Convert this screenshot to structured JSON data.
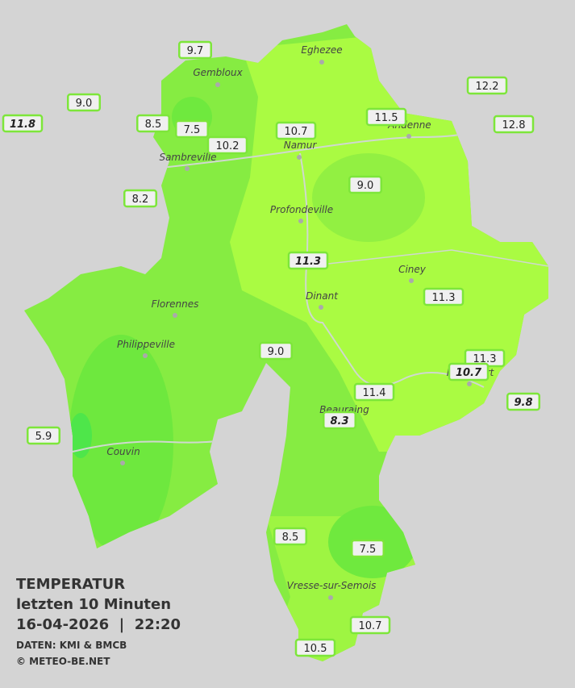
{
  "title": "TEMPERATUR",
  "subtitle": "letzten 10 Minuten",
  "datetime": "16-04-2026  |  22:20",
  "source": "DATEN: KMI & BMCB",
  "copyright": "© METEO-BE.NET",
  "cities": [
    "Eghezee",
    "Gembloux",
    "Andenne",
    "Namur",
    "Sambreville",
    "Profondeville",
    "Ciney",
    "Dinant",
    "Florennes",
    "Philippeville",
    "Rochefort",
    "Beauraing",
    "Couvin",
    "Vresse-sur-Semois"
  ],
  "stations": [
    "9.7",
    "9.0",
    "11.8",
    "8.5",
    "7.5",
    "10.2",
    "10.7",
    "11.5",
    "12.2",
    "12.8",
    "9.0",
    "8.2",
    "11.3",
    "11.3",
    "9.0",
    "11.3",
    "10.7",
    "9.8",
    "11.4",
    "8.3",
    "5.9",
    "8.5",
    "7.5",
    "10.7",
    "10.5"
  ]
}
